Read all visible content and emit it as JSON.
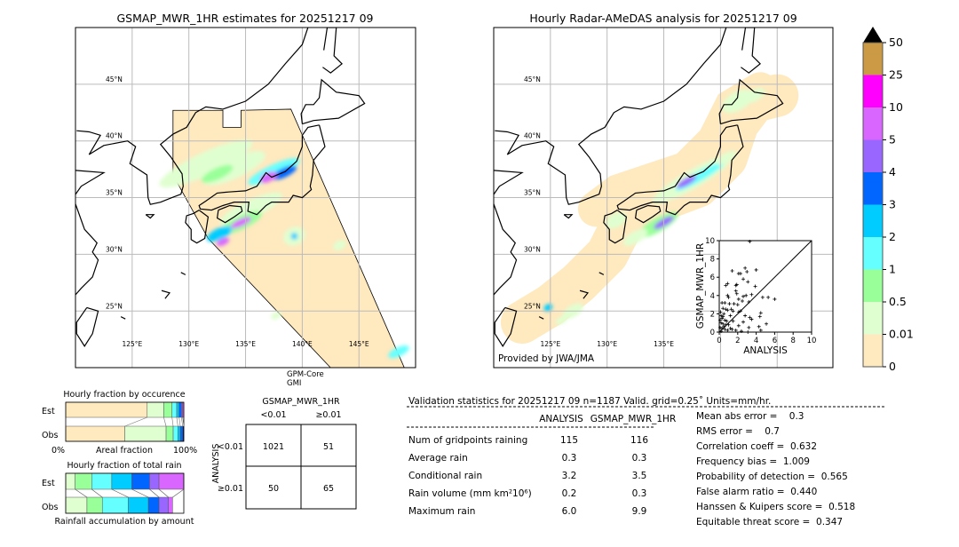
{
  "colors": {
    "levels": [
      "#ffe9bf",
      "#e0ffd0",
      "#99ff99",
      "#66ffff",
      "#00ccff",
      "#0066ff",
      "#9966ff",
      "#d966ff",
      "#ff00ff",
      "#cc9944"
    ],
    "over": "#000000",
    "coast": "#000000",
    "grid": "#bbbbbb"
  },
  "map_left": {
    "title": "GSMAP_MWR_1HR estimates for 20251217 09",
    "extent": {
      "lon": [
        120,
        150
      ],
      "lat": [
        20,
        50
      ]
    },
    "lat_labels": [
      "45°N",
      "40°N",
      "35°N",
      "30°N",
      "25°N"
    ],
    "lon_labels": [
      "125°E",
      "130°E",
      "135°E",
      "140°E",
      "145°E"
    ],
    "satellite": "GPM-Core",
    "sensor": "GMI"
  },
  "map_right": {
    "title": "Hourly Radar-AMeDAS analysis for 20251217 09",
    "lat_labels": [
      "45°N",
      "40°N",
      "35°N",
      "30°N",
      "25°N"
    ],
    "lon_labels": [
      "125°E",
      "130°E",
      "135°E"
    ],
    "credit": "Provided by JWA/JMA"
  },
  "colorbar": {
    "ticks": [
      "0",
      "0.01",
      "0.5",
      "1",
      "2",
      "3",
      "4",
      "5",
      "10",
      "25",
      "50"
    ],
    "extend": "max"
  },
  "scatter": {
    "xlabel": "ANALYSIS",
    "ylabel": "GSMAP_MWR_1HR",
    "xlim": [
      0,
      10
    ],
    "ylim": [
      0,
      10
    ],
    "ticks": [
      "0",
      "2",
      "4",
      "6",
      "8",
      "10"
    ],
    "points": [
      [
        3.3,
        9.9
      ],
      [
        2.8,
        7
      ],
      [
        3,
        6.6
      ],
      [
        1.4,
        6.7
      ],
      [
        2.1,
        6.4
      ],
      [
        2.3,
        6.4
      ],
      [
        4,
        6.8
      ],
      [
        2.6,
        5.8
      ],
      [
        0.9,
        5.3
      ],
      [
        1.8,
        5.1
      ],
      [
        1.9,
        5.2
      ],
      [
        0.7,
        5.1
      ],
      [
        3.1,
        5.5
      ],
      [
        3.9,
        5
      ],
      [
        1.8,
        4.5
      ],
      [
        1.9,
        4.2
      ],
      [
        2.9,
        4
      ],
      [
        2.6,
        3.9
      ],
      [
        3.5,
        4.1
      ],
      [
        0.9,
        4
      ],
      [
        1,
        3.8
      ],
      [
        4.7,
        3.8
      ],
      [
        5.3,
        3.8
      ],
      [
        6,
        3.6
      ],
      [
        2.1,
        3.6
      ],
      [
        2.5,
        3.4
      ],
      [
        0.6,
        3.2
      ],
      [
        0.3,
        3.2
      ],
      [
        1.1,
        3.1
      ],
      [
        1.6,
        3.1
      ],
      [
        2,
        3
      ],
      [
        3.2,
        3.3
      ],
      [
        0.4,
        2.6
      ],
      [
        0.7,
        2.5
      ],
      [
        0.9,
        2.4
      ],
      [
        1.3,
        2.5
      ],
      [
        1.5,
        2.3
      ],
      [
        2.1,
        2.2
      ],
      [
        2.3,
        2.3
      ],
      [
        0.5,
        2
      ],
      [
        0.2,
        1.8
      ],
      [
        1.2,
        1.8
      ],
      [
        2.8,
        1.8
      ],
      [
        3.3,
        1.6
      ],
      [
        4.5,
        2.1
      ],
      [
        4.4,
        1.7
      ],
      [
        0.3,
        1.5
      ],
      [
        0.6,
        1.3
      ],
      [
        0.8,
        1.2
      ],
      [
        1.5,
        1.2
      ],
      [
        2.6,
        1.1
      ],
      [
        3.5,
        1.4
      ],
      [
        0.2,
        1
      ],
      [
        0.4,
        0.9
      ],
      [
        1,
        0.8
      ],
      [
        2.1,
        0.7
      ],
      [
        3.2,
        0.5
      ],
      [
        4.3,
        0.6
      ],
      [
        5.1,
        0.9
      ],
      [
        0.1,
        0.5
      ],
      [
        0.3,
        0.4
      ],
      [
        0.6,
        0.3
      ],
      [
        0.9,
        0.2
      ],
      [
        1.4,
        0.3
      ],
      [
        1.8,
        0.2
      ],
      [
        2.4,
        0.1
      ],
      [
        4.5,
        0.2
      ],
      [
        0.2,
        0.1
      ],
      [
        0.5,
        0.6
      ],
      [
        0.7,
        0.8
      ],
      [
        1.2,
        0.4
      ],
      [
        0.1,
        1.3
      ],
      [
        0.15,
        2.2
      ],
      [
        0.4,
        1.7
      ],
      [
        3.1,
        0
      ]
    ]
  },
  "occurrence": {
    "title": "Hourly fraction by occurence",
    "est_label": "Est",
    "obs_label": "Obs",
    "xlabel": "Areal fraction",
    "x_min_label": "0%",
    "x_max_label": "100%",
    "est_percent": [
      69,
      14,
      7,
      4,
      2,
      2,
      1,
      1
    ],
    "obs_percent": [
      50,
      35,
      6,
      4,
      2,
      2,
      1
    ]
  },
  "total_rain": {
    "title": "Hourly fraction of total rain",
    "est_label": "Est",
    "obs_label": "Obs",
    "xlabel": "Rainfall accumulation by amount",
    "est_percent": [
      8,
      14,
      17,
      17,
      15,
      8,
      21
    ],
    "obs_percent": [
      18,
      13,
      22,
      17,
      9,
      8,
      3.5
    ]
  },
  "contingency": {
    "title": "GSMAP_MWR_1HR",
    "col_labels": [
      "<0.01",
      "≥0.01"
    ],
    "row_title": "ANALYSIS",
    "row_labels": [
      "<0.01",
      "≥0.01"
    ],
    "cells": [
      [
        "1021",
        "51"
      ],
      [
        "50",
        "65"
      ]
    ]
  },
  "stats": {
    "header": "Validation statistics for 20251217 09  n=1187 Valid. grid=0.25˚ Units=mm/hr.",
    "col_headers": [
      "ANALYSIS",
      "GSMAP_MWR_1HR"
    ],
    "rows": [
      {
        "label": "Num of gridpoints raining",
        "a": "115",
        "b": "116"
      },
      {
        "label": "Average rain",
        "a": "0.3",
        "b": "0.3"
      },
      {
        "label": "Conditional rain",
        "a": "3.2",
        "b": "3.5"
      },
      {
        "label": "Rain volume (mm km²10⁶)",
        "a": "0.2",
        "b": "0.3"
      },
      {
        "label": "Maximum rain",
        "a": "6.0",
        "b": "9.9"
      }
    ],
    "scores": [
      "Mean abs error =    0.3",
      "RMS error =    0.7",
      "Correlation coeff =  0.632",
      "Frequency bias =  1.009",
      "Probability of detection =  0.565",
      "False alarm ratio =  0.440",
      "Hanssen & Kuipers score =  0.518",
      "Equitable threat score =  0.347"
    ]
  }
}
